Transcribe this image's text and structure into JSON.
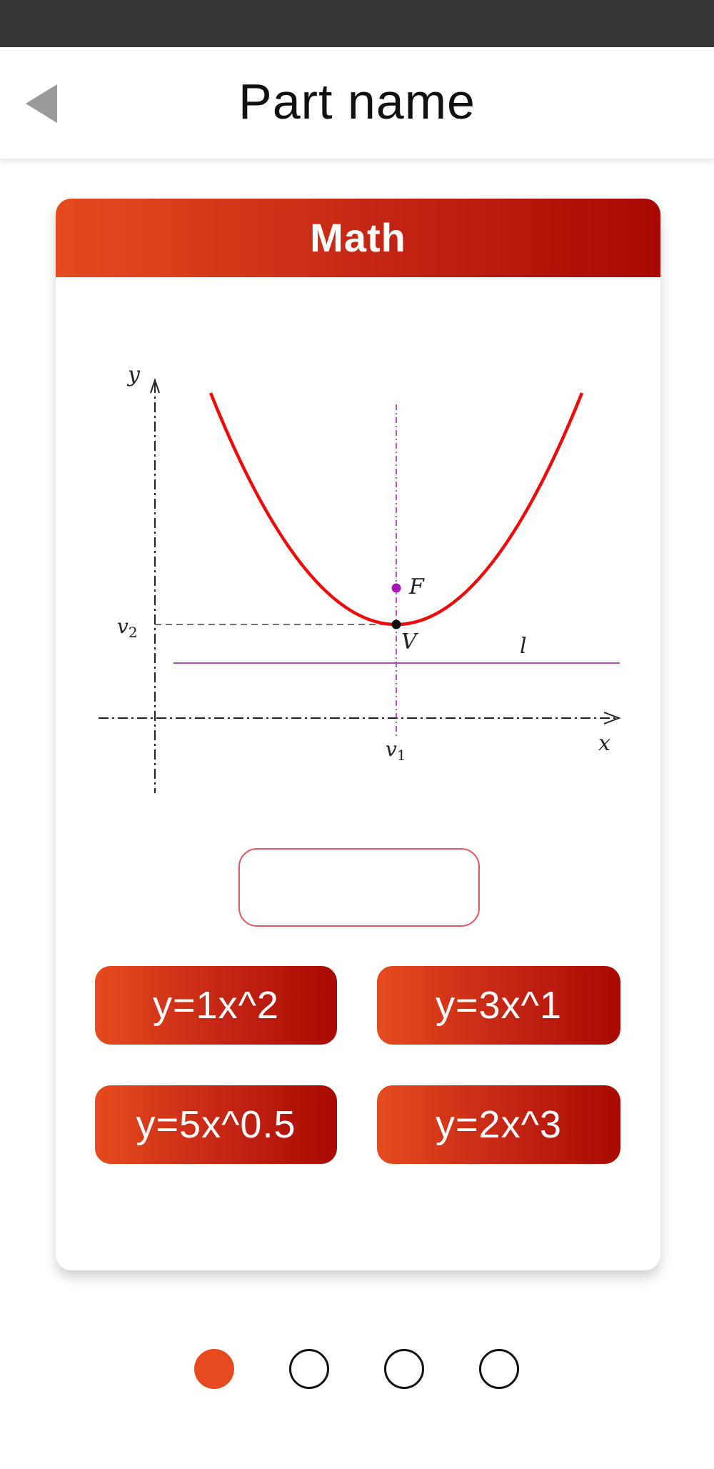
{
  "header": {
    "title": "Part name",
    "back_icon": "back-arrow-icon"
  },
  "card": {
    "title": "Math",
    "graph": {
      "labels": {
        "y_axis": "y",
        "x_axis": "x",
        "v2": "v",
        "v2_sub": "2",
        "v1": "v",
        "v1_sub": "1",
        "focus": "F",
        "vertex": "V",
        "directrix": "l"
      },
      "colors": {
        "parabola": "#ee0a0a",
        "focus": "#a416b8",
        "directrix": "#b04bb8",
        "axis": "#222222"
      }
    },
    "answer": {
      "value": ""
    },
    "options": [
      {
        "label": "y=1x^2"
      },
      {
        "label": "y=3x^1"
      },
      {
        "label": "y=5x^0.5"
      },
      {
        "label": "y=2x^3"
      }
    ]
  },
  "pagination": {
    "total": 4,
    "current": 1
  },
  "colors": {
    "accent_start": "#e54b1e",
    "accent_end": "#a80a02",
    "status_bar": "#353535"
  }
}
